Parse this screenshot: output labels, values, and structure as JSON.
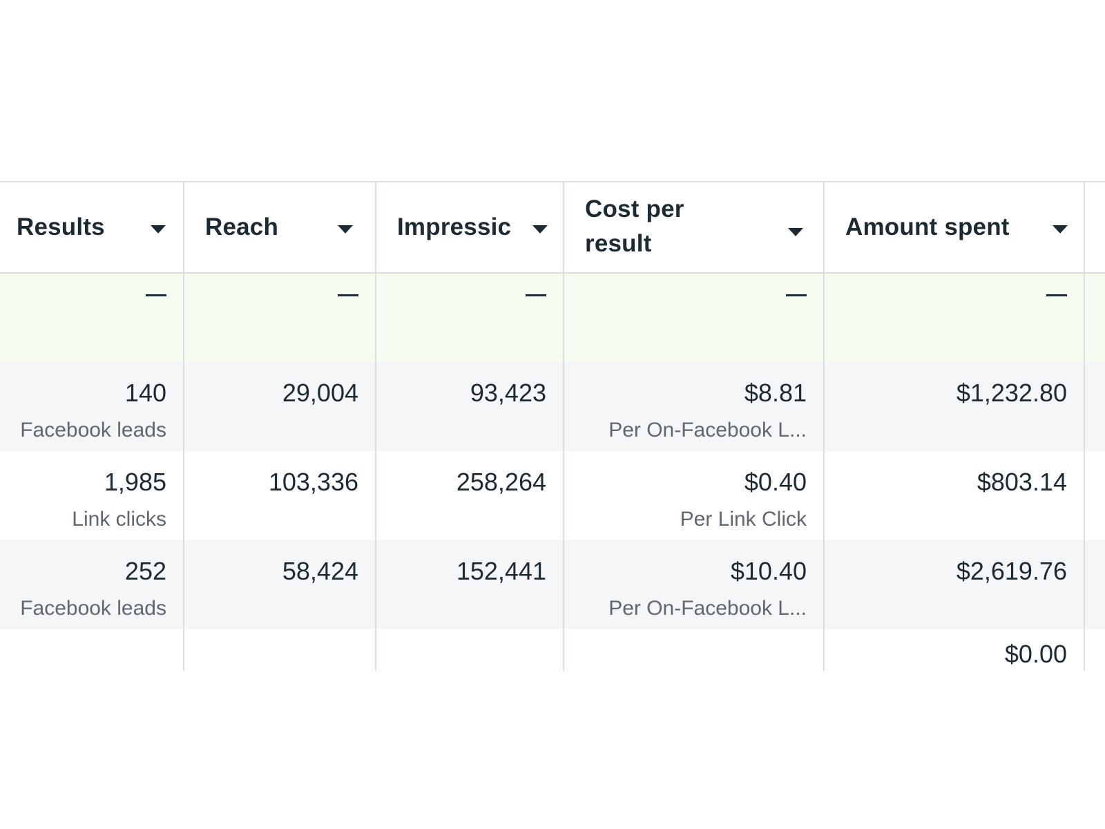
{
  "table": {
    "columns": [
      {
        "label": "Results"
      },
      {
        "label": "Reach"
      },
      {
        "label": "Impressic"
      },
      {
        "label": "Cost per result"
      },
      {
        "label": "Amount spent"
      }
    ],
    "total_row": {
      "results": "—",
      "reach": "—",
      "impressions": "—",
      "cost_per_result": "—",
      "amount_spent": "—"
    },
    "rows": [
      {
        "results": "140",
        "results_sub": "Facebook leads",
        "reach": "29,004",
        "impressions": "93,423",
        "cost_per_result": "$8.81",
        "cost_per_result_sub": "Per On-Facebook L...",
        "amount_spent": "$1,232.80"
      },
      {
        "results": "1,985",
        "results_sub": "Link clicks",
        "reach": "103,336",
        "impressions": "258,264",
        "cost_per_result": "$0.40",
        "cost_per_result_sub": "Per Link Click",
        "amount_spent": "$803.14"
      },
      {
        "results": "252",
        "results_sub": "Facebook leads",
        "reach": "58,424",
        "impressions": "152,441",
        "cost_per_result": "$10.40",
        "cost_per_result_sub": "Per On-Facebook L...",
        "amount_spent": "$2,619.76"
      }
    ],
    "partial_row": {
      "amount_spent": "$0.00"
    }
  }
}
